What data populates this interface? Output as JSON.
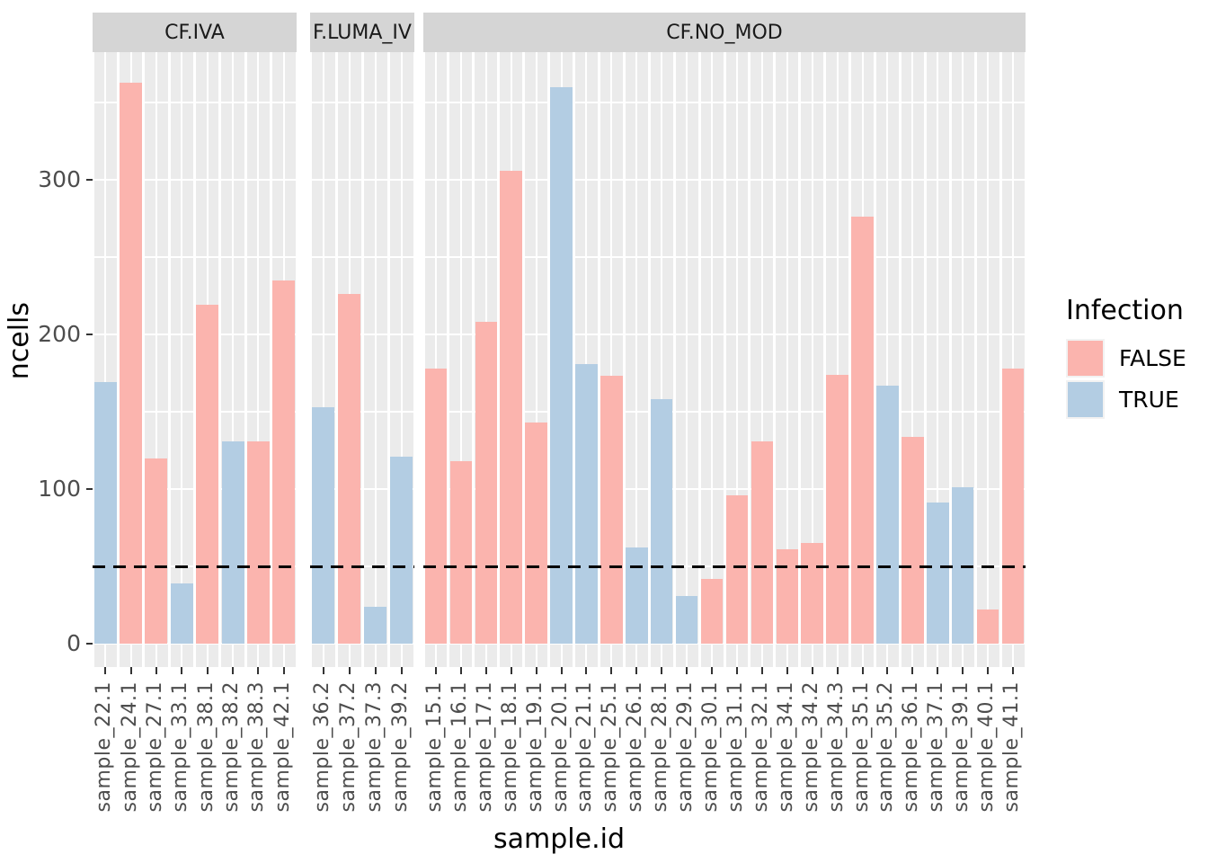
{
  "chart_data": {
    "type": "bar",
    "xlabel": "sample.id",
    "ylabel": "ncells",
    "y_ticks": [
      0,
      100,
      200,
      300
    ],
    "y_minor_gridlines": [
      50,
      150,
      250,
      350
    ],
    "ylim": [
      -18,
      380
    ],
    "grid": true,
    "reference_line": {
      "value": 50,
      "style": "dashed",
      "color": "#000000"
    },
    "legend": {
      "title": "Infection",
      "position": "right",
      "entries": [
        {
          "label": "FALSE",
          "color": "#FBB4AE"
        },
        {
          "label": "TRUE",
          "color": "#B3CDE3"
        }
      ]
    },
    "facets": [
      {
        "label": "CF.IVA",
        "bars": [
          {
            "sample": "sample_22.1",
            "ncells": 169,
            "infection": "TRUE"
          },
          {
            "sample": "sample_24.1",
            "ncells": 363,
            "infection": "FALSE"
          },
          {
            "sample": "sample_27.1",
            "ncells": 120,
            "infection": "FALSE"
          },
          {
            "sample": "sample_33.1",
            "ncells": 39,
            "infection": "TRUE"
          },
          {
            "sample": "sample_38.1",
            "ncells": 219,
            "infection": "FALSE"
          },
          {
            "sample": "sample_38.2",
            "ncells": 131,
            "infection": "TRUE"
          },
          {
            "sample": "sample_38.3",
            "ncells": 131,
            "infection": "FALSE"
          },
          {
            "sample": "sample_42.1",
            "ncells": 235,
            "infection": "FALSE"
          }
        ]
      },
      {
        "label": "F.LUMA_IV",
        "bars": [
          {
            "sample": "sample_36.2",
            "ncells": 153,
            "infection": "TRUE"
          },
          {
            "sample": "sample_37.2",
            "ncells": 226,
            "infection": "FALSE"
          },
          {
            "sample": "sample_37.3",
            "ncells": 24,
            "infection": "TRUE"
          },
          {
            "sample": "sample_39.2",
            "ncells": 121,
            "infection": "TRUE"
          }
        ]
      },
      {
        "label": "CF.NO_MOD",
        "bars": [
          {
            "sample": "sample_15.1",
            "ncells": 178,
            "infection": "FALSE"
          },
          {
            "sample": "sample_16.1",
            "ncells": 118,
            "infection": "FALSE"
          },
          {
            "sample": "sample_17.1",
            "ncells": 208,
            "infection": "FALSE"
          },
          {
            "sample": "sample_18.1",
            "ncells": 306,
            "infection": "FALSE"
          },
          {
            "sample": "sample_19.1",
            "ncells": 143,
            "infection": "FALSE"
          },
          {
            "sample": "sample_20.1",
            "ncells": 360,
            "infection": "TRUE"
          },
          {
            "sample": "sample_21.1",
            "ncells": 181,
            "infection": "TRUE"
          },
          {
            "sample": "sample_25.1",
            "ncells": 173,
            "infection": "FALSE"
          },
          {
            "sample": "sample_26.1",
            "ncells": 62,
            "infection": "TRUE"
          },
          {
            "sample": "sample_28.1",
            "ncells": 158,
            "infection": "TRUE"
          },
          {
            "sample": "sample_29.1",
            "ncells": 31,
            "infection": "TRUE"
          },
          {
            "sample": "sample_30.1",
            "ncells": 42,
            "infection": "FALSE"
          },
          {
            "sample": "sample_31.1",
            "ncells": 96,
            "infection": "FALSE"
          },
          {
            "sample": "sample_32.1",
            "ncells": 131,
            "infection": "FALSE"
          },
          {
            "sample": "sample_34.1",
            "ncells": 61,
            "infection": "FALSE"
          },
          {
            "sample": "sample_34.2",
            "ncells": 65,
            "infection": "FALSE"
          },
          {
            "sample": "sample_34.3",
            "ncells": 174,
            "infection": "FALSE"
          },
          {
            "sample": "sample_35.1",
            "ncells": 276,
            "infection": "FALSE"
          },
          {
            "sample": "sample_35.2",
            "ncells": 167,
            "infection": "TRUE"
          },
          {
            "sample": "sample_36.1",
            "ncells": 134,
            "infection": "FALSE"
          },
          {
            "sample": "sample_37.1",
            "ncells": 91,
            "infection": "TRUE"
          },
          {
            "sample": "sample_39.1",
            "ncells": 101,
            "infection": "TRUE"
          },
          {
            "sample": "sample_40.1",
            "ncells": 22,
            "infection": "FALSE"
          },
          {
            "sample": "sample_41.1",
            "ncells": 178,
            "infection": "FALSE"
          }
        ]
      }
    ],
    "style": {
      "panel_background": "#EBEBEB",
      "strip_background": "#D5D5D5",
      "gridline_color": "#FFFFFF",
      "axis_text_color": "#4D4D4D"
    }
  }
}
